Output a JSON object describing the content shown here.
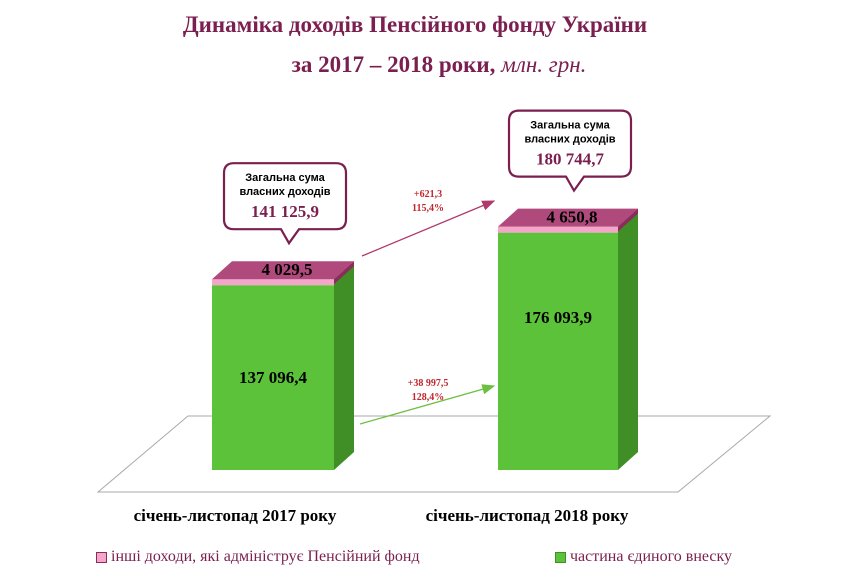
{
  "title": {
    "line1": "Динаміка доходів Пенсійного фонду України",
    "line2_main": "за 2017 – 2018 роки,",
    "line2_unit": "млн. грн."
  },
  "colors": {
    "title": "#7a1f4f",
    "esv_front": "#5cc23a",
    "esv_side": "#3f8f26",
    "other_front": "#f3a6c9",
    "cap_top": "#b04a7c",
    "cap_side": "#8a2c5c",
    "arrow_pink": "#b03a6a",
    "arrow_green": "#6cc040",
    "growth_text": "#c0282e"
  },
  "chart_data": {
    "type": "bar",
    "stacked": true,
    "categories": [
      "січень-листопад 2017 року",
      "січень-листопад 2018 року"
    ],
    "series": [
      {
        "name": "частина єдиного внеску",
        "values": [
          137096.4,
          176093.9
        ],
        "labels": [
          "137 096,4",
          "176 093,9"
        ]
      },
      {
        "name": "інші доходи, які адмініструє Пенсійний фонд",
        "values": [
          4029.5,
          4650.8
        ],
        "labels": [
          "4 029,5",
          "4 650,8"
        ]
      }
    ],
    "totals": {
      "caption": [
        "Загальна сума",
        "власних доходів"
      ],
      "values": [
        141125.9,
        180744.7
      ],
      "labels": [
        "141 125,9",
        "180 744,7"
      ]
    },
    "growth": {
      "other": {
        "abs": "+621,3",
        "pct": "115,4%"
      },
      "esv": {
        "abs": "+38 997,5",
        "pct": "128,4%"
      }
    },
    "legend_position": "bottom"
  }
}
